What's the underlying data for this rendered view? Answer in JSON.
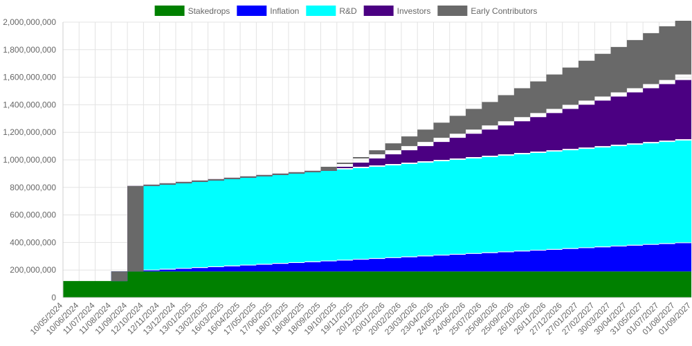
{
  "chart_data": {
    "type": "area",
    "stacked": true,
    "legend_position": "top",
    "grid": true,
    "ylim": [
      0,
      2000000000
    ],
    "y_ticks": [
      0,
      200000000,
      400000000,
      600000000,
      800000000,
      1000000000,
      1200000000,
      1400000000,
      1600000000,
      1800000000,
      2000000000
    ],
    "y_tick_labels": [
      "0",
      "200,000,000",
      "400,000,000",
      "600,000,000",
      "800,000,000",
      "1,000,000,000",
      "1,200,000,000",
      "1,400,000,000",
      "1,600,000,000",
      "1,800,000,000",
      "2,000,000,000"
    ],
    "x_labels": [
      "10/05/2024",
      "10/06/2024",
      "11/07/2024",
      "11/08/2024",
      "11/09/2024",
      "12/10/2024",
      "12/11/2024",
      "13/12/2024",
      "13/01/2025",
      "13/02/2025",
      "16/03/2025",
      "16/04/2025",
      "17/05/2025",
      "17/06/2025",
      "18/07/2025",
      "18/08/2025",
      "18/09/2025",
      "19/10/2025",
      "19/11/2025",
      "20/12/2025",
      "20/01/2026",
      "20/02/2026",
      "23/03/2026",
      "23/04/2026",
      "24/05/2026",
      "24/06/2026",
      "25/07/2026",
      "25/08/2026",
      "25/09/2026",
      "26/10/2026",
      "26/11/2026",
      "27/12/2026",
      "27/01/2027",
      "27/02/2027",
      "30/03/2027",
      "30/04/2027",
      "31/05/2027",
      "01/07/2027",
      "01/08/2027",
      "01/09/2027"
    ],
    "series": [
      {
        "name": "Stakedrops",
        "color": "#008000",
        "values": [
          120000000,
          120000000,
          120000000,
          120000000,
          190000000,
          190000000,
          190000000,
          190000000,
          190000000,
          190000000,
          190000000,
          190000000,
          190000000,
          190000000,
          190000000,
          190000000,
          190000000,
          190000000,
          190000000,
          190000000,
          190000000,
          190000000,
          190000000,
          190000000,
          190000000,
          190000000,
          190000000,
          190000000,
          190000000,
          190000000,
          190000000,
          190000000,
          190000000,
          190000000,
          190000000,
          190000000,
          190000000,
          190000000,
          190000000,
          190000000
        ]
      },
      {
        "name": "Inflation",
        "color": "#0000ff",
        "values": [
          0,
          0,
          0,
          0,
          0,
          7000000,
          13000000,
          19000000,
          25000000,
          31000000,
          37000000,
          43000000,
          49000000,
          55000000,
          61000000,
          67000000,
          73000000,
          79000000,
          85000000,
          91000000,
          97000000,
          103000000,
          109000000,
          115000000,
          121000000,
          127000000,
          133000000,
          139000000,
          145000000,
          151000000,
          157000000,
          163000000,
          169000000,
          175000000,
          181000000,
          187000000,
          193000000,
          199000000,
          205000000,
          211000000
        ]
      },
      {
        "name": "R&D",
        "color": "#00ffff",
        "values": [
          0,
          0,
          0,
          0,
          0,
          613000000,
          617000000,
          621000000,
          625000000,
          629000000,
          633000000,
          637000000,
          641000000,
          645000000,
          649000000,
          653000000,
          657000000,
          661000000,
          665000000,
          669000000,
          673000000,
          677000000,
          681000000,
          685000000,
          689000000,
          693000000,
          697000000,
          701000000,
          705000000,
          709000000,
          713000000,
          717000000,
          721000000,
          725000000,
          729000000,
          733000000,
          737000000,
          741000000,
          745000000,
          749000000
        ]
      },
      {
        "name": "Investors",
        "color": "#4b0082",
        "values": [
          0,
          0,
          0,
          0,
          0,
          0,
          0,
          0,
          0,
          0,
          0,
          0,
          0,
          0,
          0,
          0,
          0,
          20000000,
          40000000,
          60000000,
          80000000,
          100000000,
          120000000,
          140000000,
          160000000,
          180000000,
          200000000,
          220000000,
          240000000,
          260000000,
          280000000,
          300000000,
          320000000,
          340000000,
          360000000,
          380000000,
          400000000,
          420000000,
          440000000,
          470000000
        ]
      },
      {
        "name": "Early Contributors",
        "color": "#696969",
        "values": [
          0,
          0,
          0,
          0,
          0,
          0,
          0,
          0,
          0,
          0,
          0,
          0,
          0,
          0,
          0,
          0,
          0,
          20000000,
          40000000,
          60000000,
          80000000,
          100000000,
          120000000,
          140000000,
          160000000,
          180000000,
          200000000,
          220000000,
          240000000,
          260000000,
          280000000,
          300000000,
          320000000,
          340000000,
          360000000,
          380000000,
          400000000,
          420000000,
          430000000,
          440000000
        ]
      }
    ]
  }
}
